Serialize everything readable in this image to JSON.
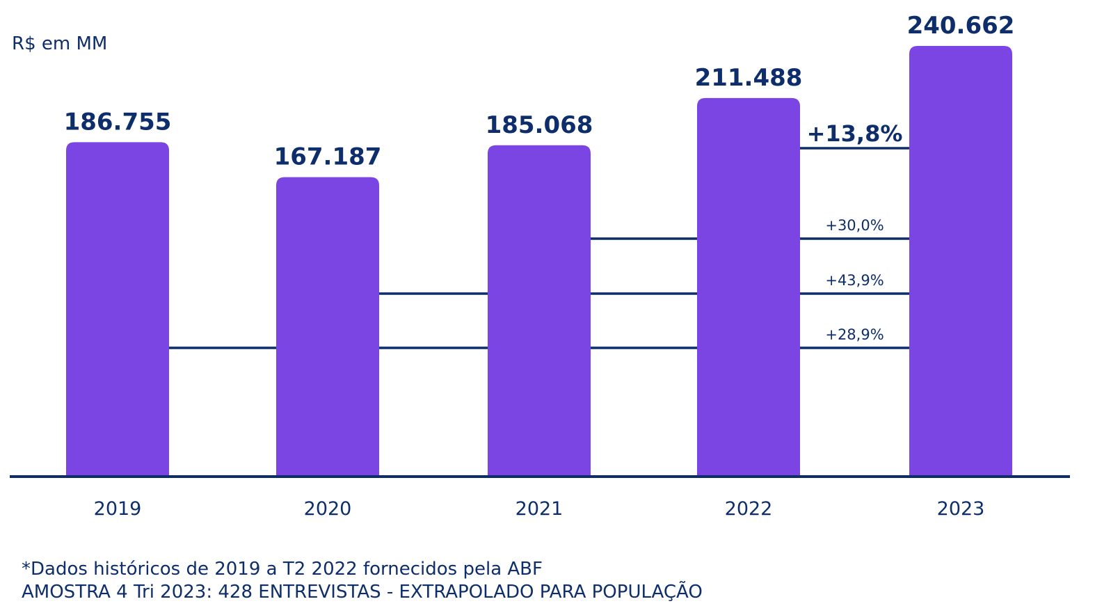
{
  "unit_label": "R$ em MM",
  "colors": {
    "bar": "#7b45e3",
    "text": "#0d2d6b",
    "axis": "#0d2d6b",
    "background": "#ffffff"
  },
  "chart_data": {
    "type": "bar",
    "categories": [
      "2019",
      "2020",
      "2021",
      "2022",
      "2023"
    ],
    "values": [
      186755,
      167187,
      185068,
      211488,
      240662
    ],
    "value_labels": [
      "186.755",
      "167.187",
      "185.068",
      "211.488",
      "240.662"
    ],
    "ylabel": "R$ em MM",
    "ylim": [
      0,
      240662
    ],
    "grid": false,
    "legend": "none",
    "growth_annotations": [
      {
        "from": "2022",
        "to": "2023",
        "label": "+13,8%",
        "emphasis": true
      },
      {
        "from": "2021",
        "to": "2023",
        "label": "+30,0%",
        "emphasis": false
      },
      {
        "from": "2020",
        "to": "2023",
        "label": "+43,9%",
        "emphasis": false
      },
      {
        "from": "2019",
        "to": "2023",
        "label": "+28,9%",
        "emphasis": false
      }
    ]
  },
  "footnotes": [
    "*Dados históricos de 2019 a T2 2022 fornecidos pela ABF",
    "AMOSTRA 4 Tri 2023: 428 ENTREVISTAS - EXTRAPOLADO PARA POPULAÇÃO"
  ]
}
